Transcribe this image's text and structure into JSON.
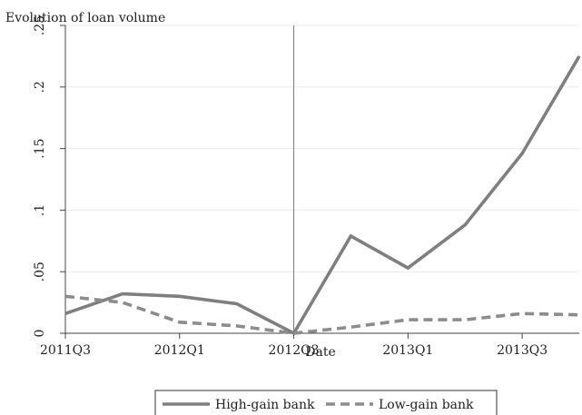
{
  "chart_data": {
    "type": "line",
    "title": "Evolution of loan volume",
    "xlabel": "Date",
    "ylabel": "",
    "categories": [
      "2011Q3",
      "2011Q4",
      "2012Q1",
      "2012Q2",
      "2012Q3",
      "2012Q4",
      "2013Q1",
      "2013Q2",
      "2013Q3",
      "2013Q4"
    ],
    "x_tick_labels": [
      "2011Q3",
      "2012Q1",
      "2012Q3",
      "2013Q1",
      "2013Q3"
    ],
    "y_ticks": [
      {
        "value": 0,
        "label": "0"
      },
      {
        "value": 0.05,
        "label": ".05"
      },
      {
        "value": 0.1,
        "label": ".1"
      },
      {
        "value": 0.15,
        "label": ".15"
      },
      {
        "value": 0.2,
        "label": ".2"
      },
      {
        "value": 0.25,
        "label": ".25"
      }
    ],
    "ylim": [
      0,
      0.25
    ],
    "vertical_line_at": "2012Q3",
    "grid": true,
    "legend_position": "bottom",
    "series": [
      {
        "name": "High-gain bank",
        "style": "solid",
        "color": "#7f7f7f",
        "values": [
          0.016,
          0.032,
          0.03,
          0.024,
          0.0,
          0.079,
          0.053,
          0.088,
          0.146,
          0.225
        ]
      },
      {
        "name": "Low-gain bank",
        "style": "dashed",
        "color": "#8c8c8c",
        "values": [
          0.03,
          0.025,
          0.009,
          0.006,
          0.0,
          0.005,
          0.011,
          0.011,
          0.016,
          0.015
        ]
      }
    ]
  }
}
